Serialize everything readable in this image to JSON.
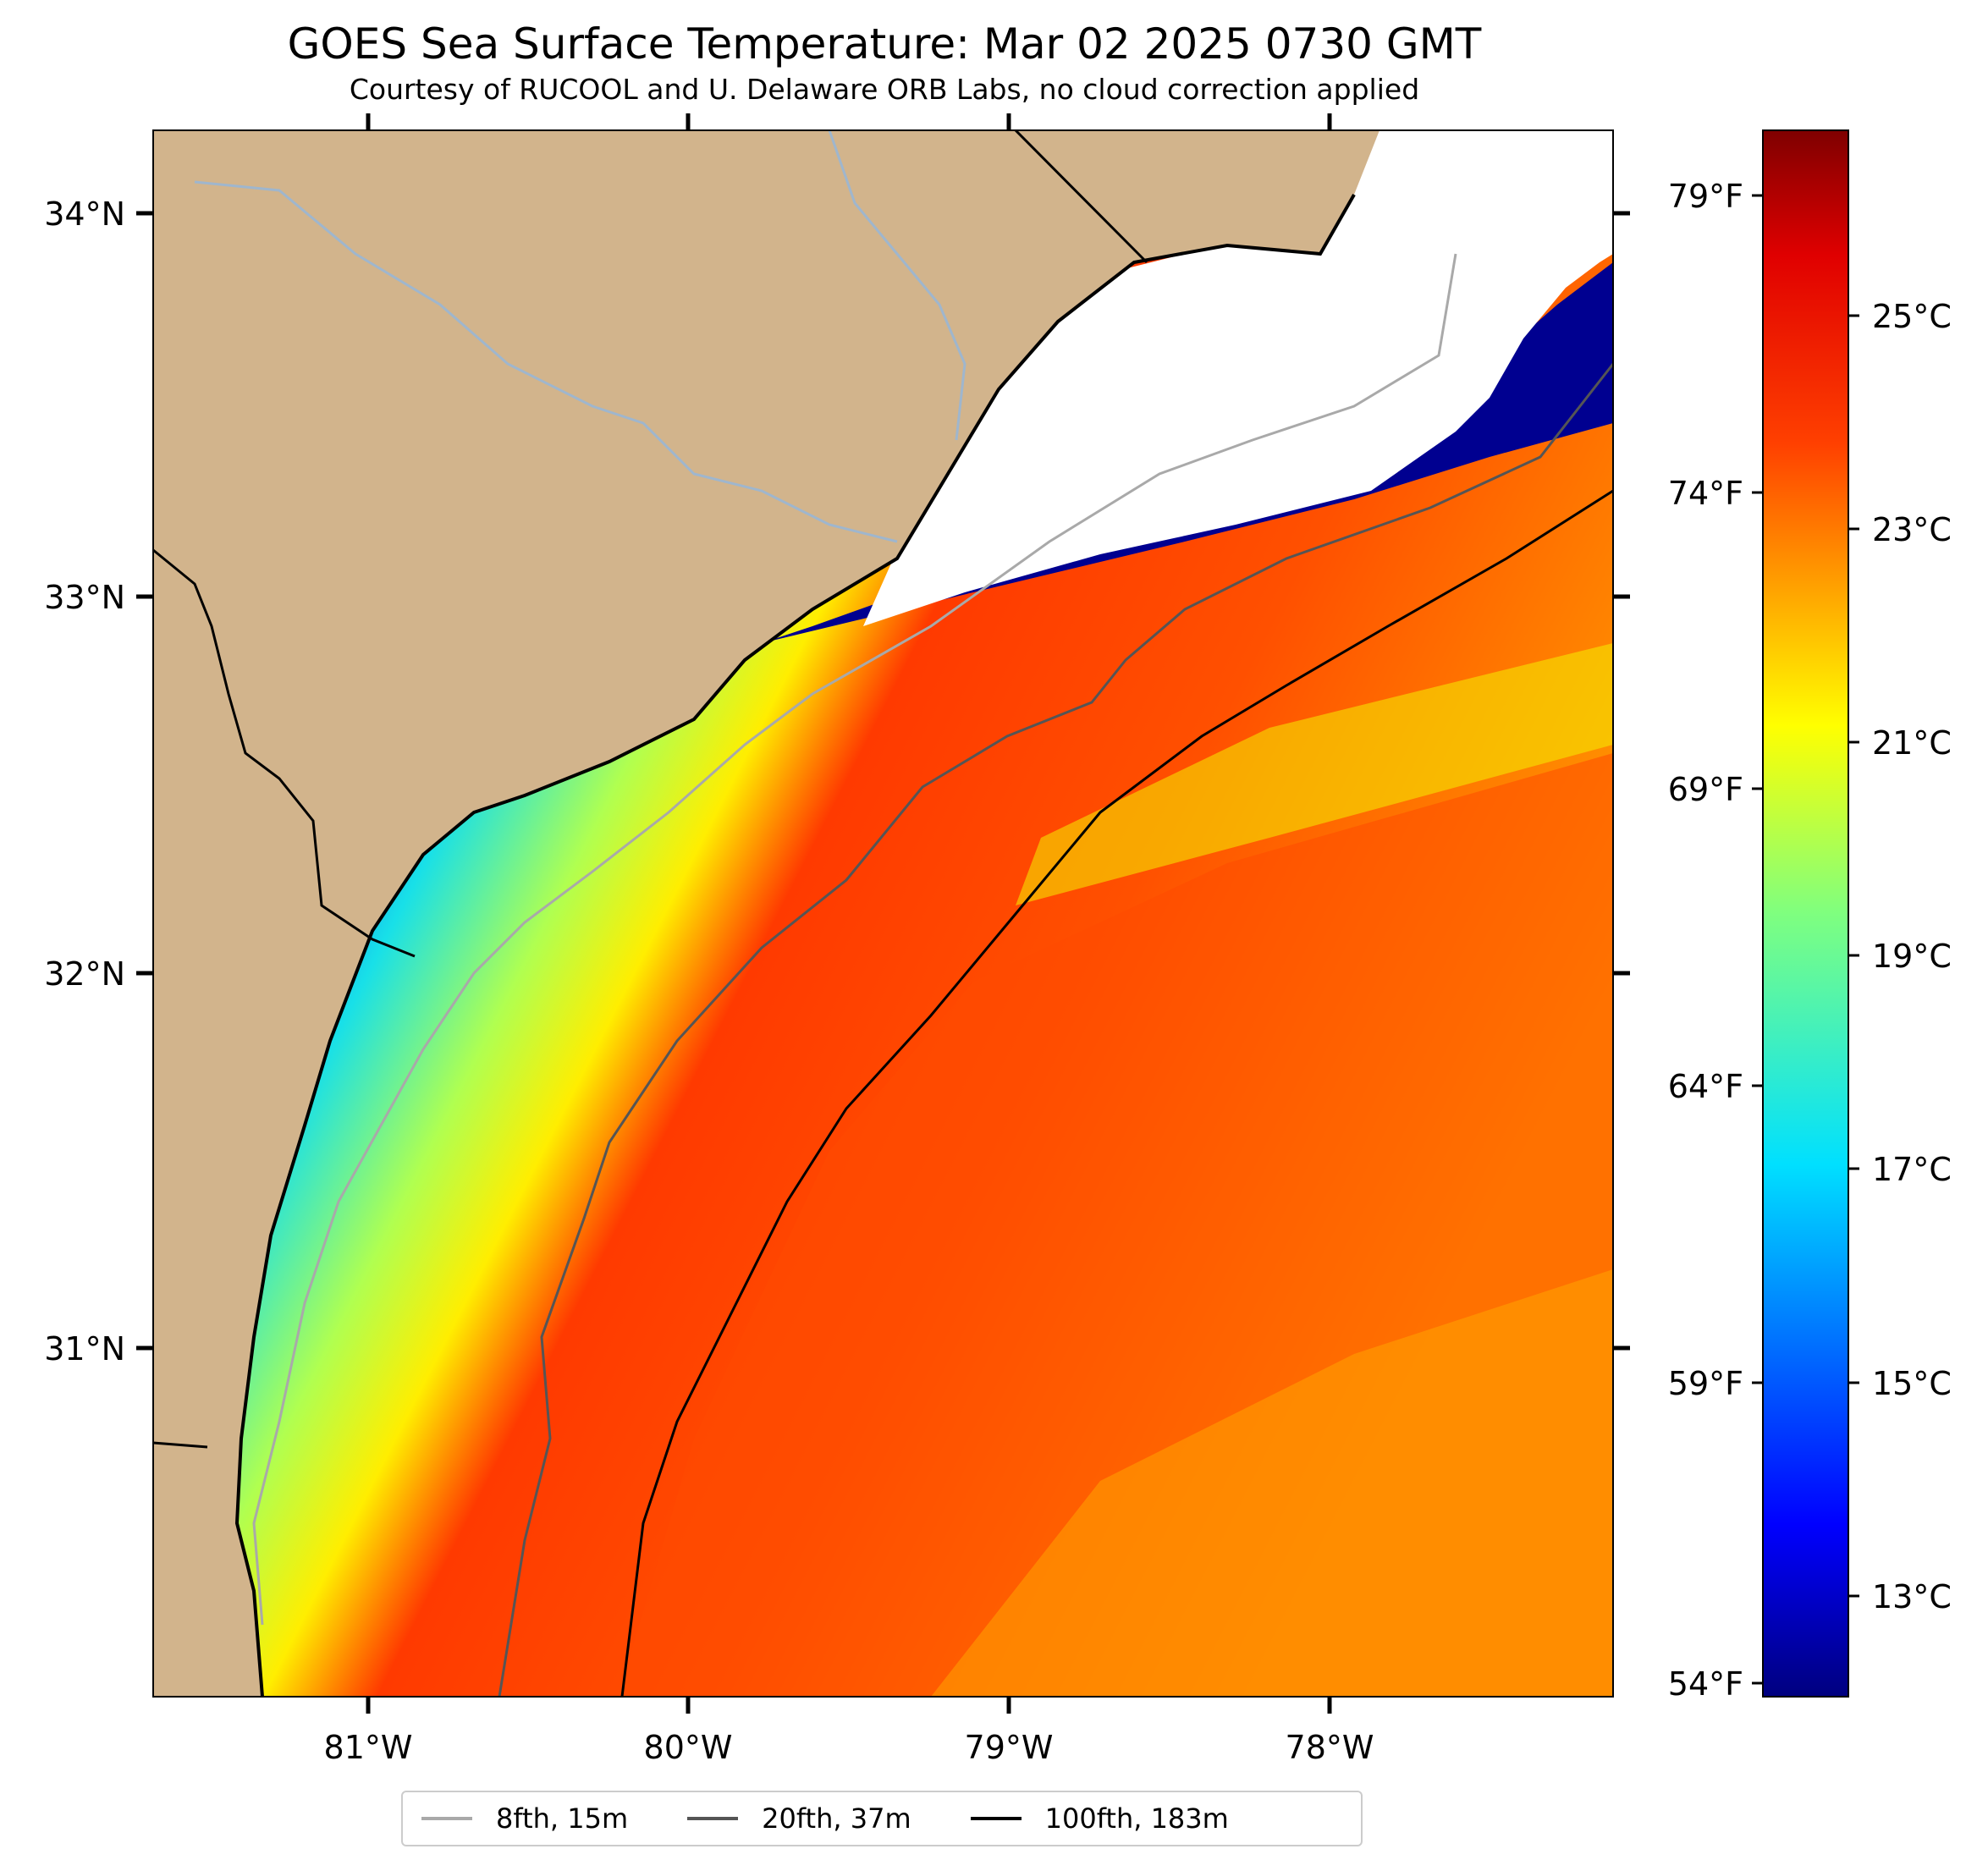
{
  "title": "GOES Sea Surface Temperature: Mar 02 2025 0730 GMT",
  "subtitle": "Courtesy of RUCOOL and U. Delaware ORB Labs, no cloud correction applied",
  "map": {
    "lon_labels": [
      "81°W",
      "80°W",
      "79°W",
      "78°W"
    ],
    "lat_labels": [
      "34°N",
      "33°N",
      "32°N",
      "31°N"
    ],
    "fahrenheit_labels": [
      "79°F",
      "74°F",
      "69°F",
      "64°F",
      "59°F",
      "54°F"
    ],
    "colors": {
      "land": "#d2b48c",
      "cloud": "#ffffff",
      "river": "#9fb6cd"
    }
  },
  "colorbar": {
    "labels": [
      "25°C",
      "23°C",
      "21°C",
      "19°C",
      "17°C",
      "15°C",
      "13°C"
    ],
    "colormap": "jet"
  },
  "legend": {
    "items": [
      {
        "label": "8fth, 15m",
        "color": "#a9a9a9"
      },
      {
        "label": "20fth, 37m",
        "color": "#555555"
      },
      {
        "label": "100fth, 183m",
        "color": "#000000"
      }
    ]
  }
}
